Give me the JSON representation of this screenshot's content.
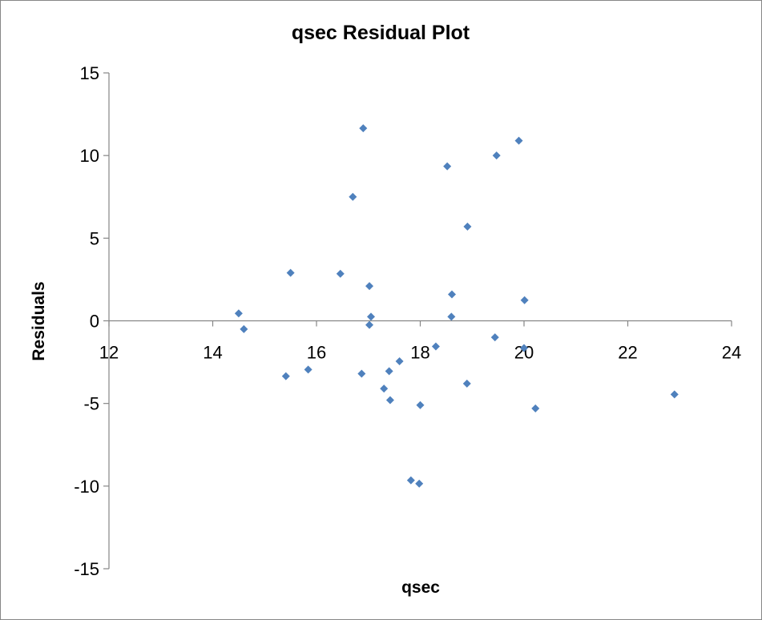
{
  "chart_data": {
    "type": "scatter",
    "title": "qsec  Residual Plot",
    "xlabel": "qsec",
    "ylabel": "Residuals",
    "xlim": [
      12,
      24
    ],
    "ylim": [
      -15,
      15
    ],
    "x_ticks": [
      12,
      14,
      16,
      18,
      20,
      22,
      24
    ],
    "y_ticks": [
      -15,
      -10,
      -5,
      0,
      5,
      10,
      15
    ],
    "grid": false,
    "legend": "none",
    "marker": "diamond",
    "marker_color": "#4F81BD",
    "series": [
      {
        "points": [
          {
            "x": 14.5,
            "y": 0.45
          },
          {
            "x": 14.6,
            "y": -0.5
          },
          {
            "x": 15.41,
            "y": -3.35
          },
          {
            "x": 15.5,
            "y": 2.9
          },
          {
            "x": 15.84,
            "y": -2.95
          },
          {
            "x": 16.46,
            "y": 2.85
          },
          {
            "x": 16.7,
            "y": 7.5
          },
          {
            "x": 16.87,
            "y": -3.2
          },
          {
            "x": 16.9,
            "y": 11.65
          },
          {
            "x": 17.02,
            "y": 2.1
          },
          {
            "x": 17.02,
            "y": -0.25
          },
          {
            "x": 17.05,
            "y": 0.25
          },
          {
            "x": 17.3,
            "y": -4.1
          },
          {
            "x": 17.4,
            "y": -3.05
          },
          {
            "x": 17.42,
            "y": -4.8
          },
          {
            "x": 17.6,
            "y": -2.45
          },
          {
            "x": 17.82,
            "y": -9.65
          },
          {
            "x": 17.98,
            "y": -9.85
          },
          {
            "x": 18.0,
            "y": -5.1
          },
          {
            "x": 18.3,
            "y": -1.55
          },
          {
            "x": 18.52,
            "y": 9.35
          },
          {
            "x": 18.6,
            "y": 0.25
          },
          {
            "x": 18.61,
            "y": 1.6
          },
          {
            "x": 18.9,
            "y": -3.8
          },
          {
            "x": 18.91,
            "y": 5.7
          },
          {
            "x": 19.44,
            "y": -1.0
          },
          {
            "x": 19.47,
            "y": 10.0
          },
          {
            "x": 19.9,
            "y": 10.9
          },
          {
            "x": 20.0,
            "y": -1.65
          },
          {
            "x": 20.01,
            "y": 1.25
          },
          {
            "x": 20.22,
            "y": -5.3
          },
          {
            "x": 22.9,
            "y": -4.45
          }
        ]
      }
    ]
  }
}
